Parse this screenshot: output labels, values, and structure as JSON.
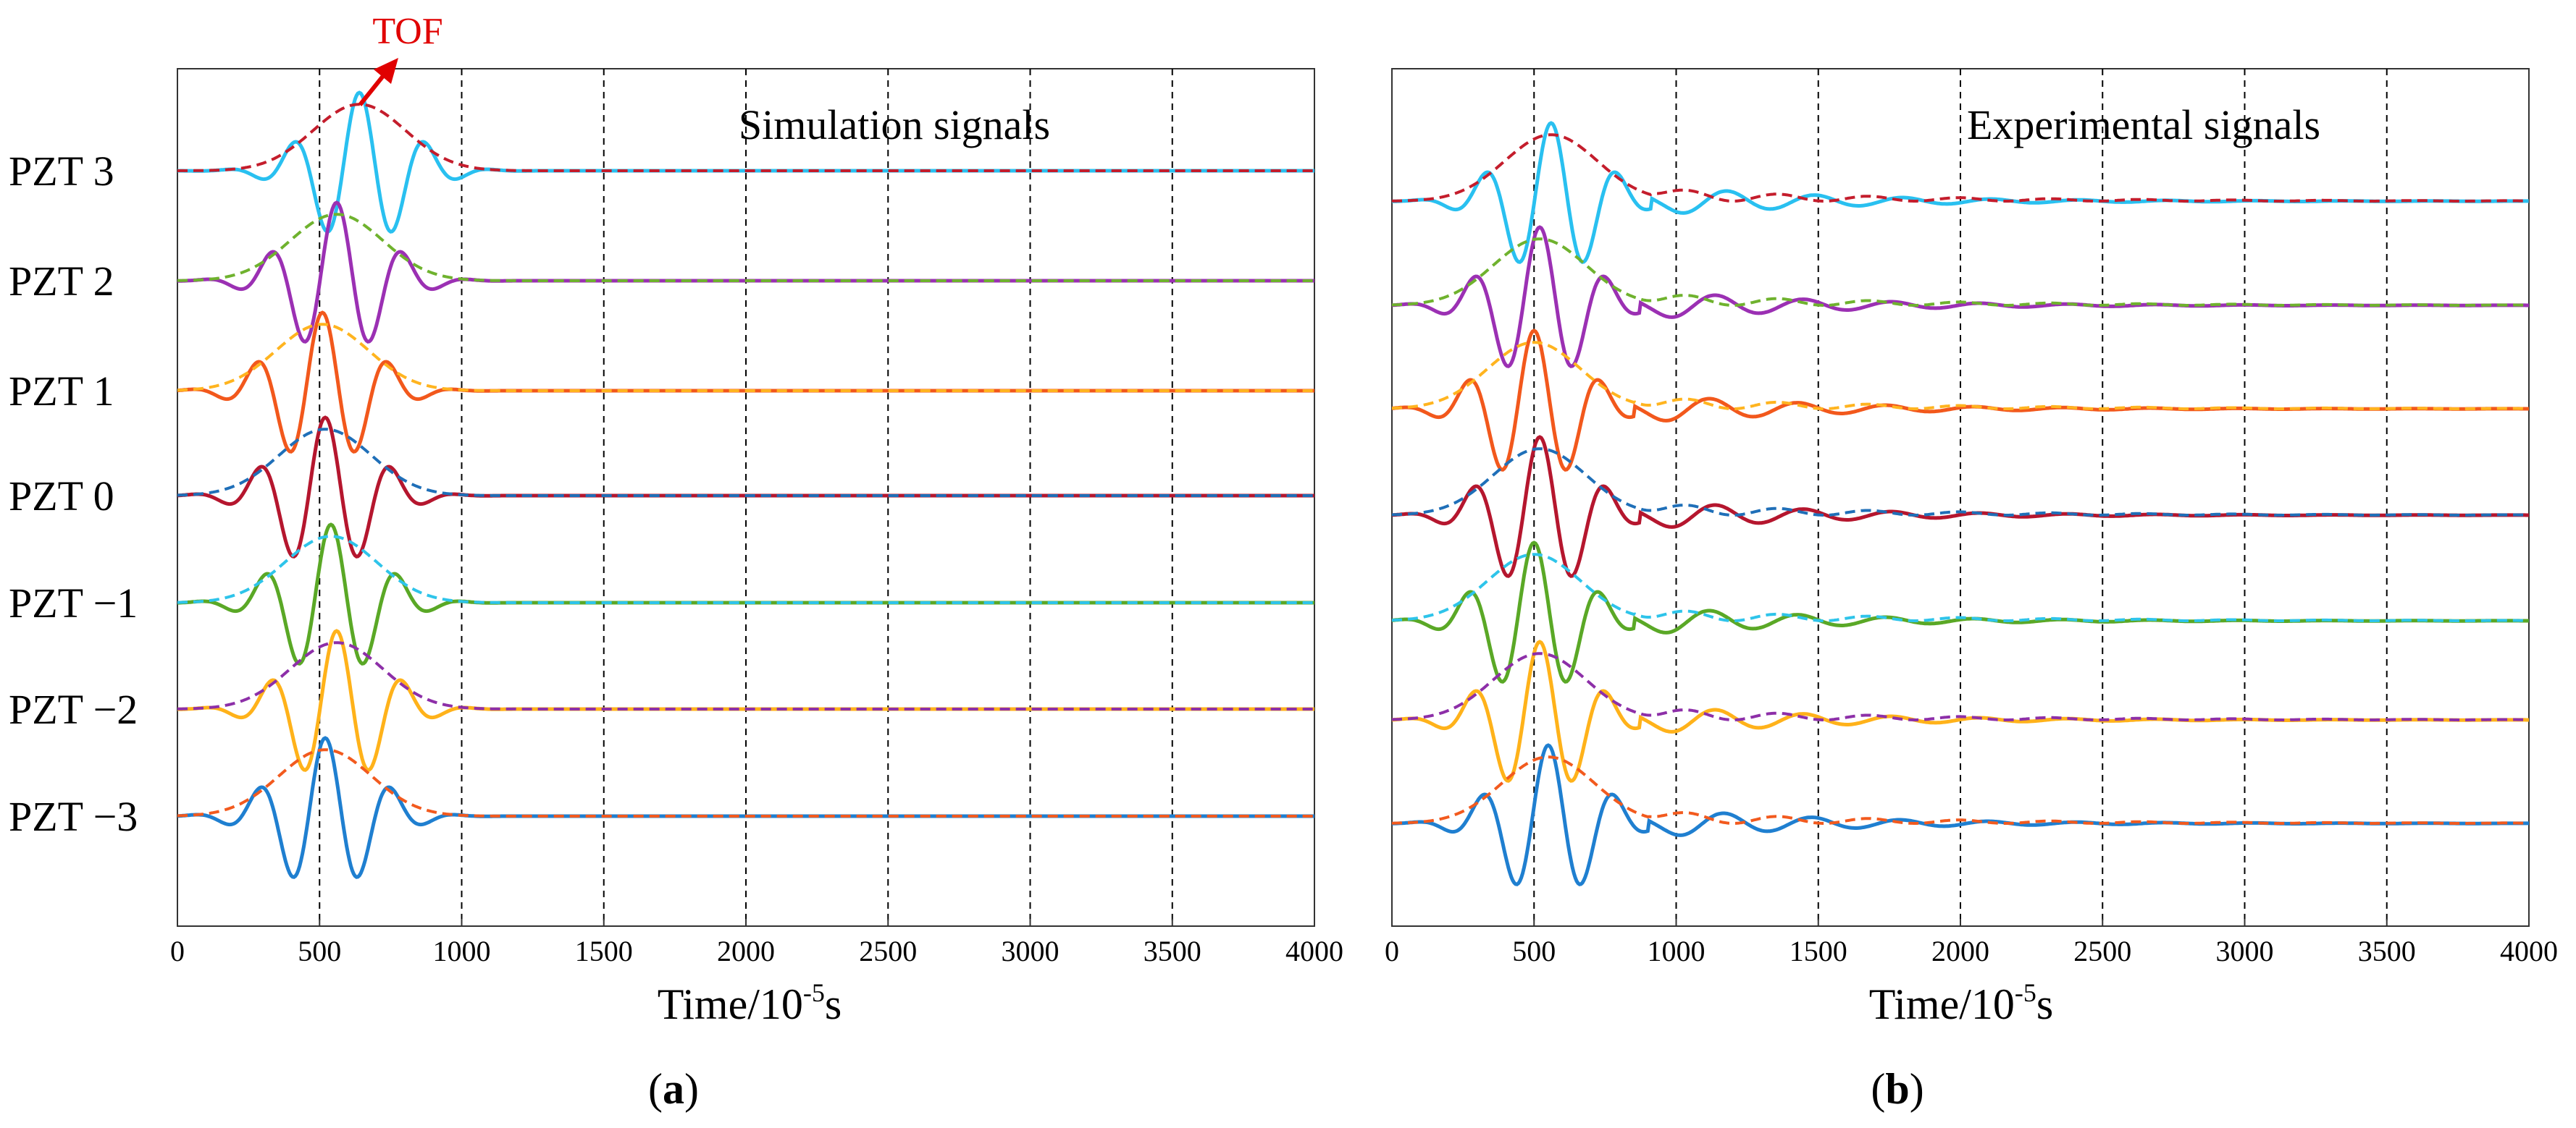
{
  "figure_labels": {
    "a": "a",
    "b": "b"
  },
  "chart_data": [
    {
      "type": "line",
      "panel": "a",
      "title": "Simulation signals",
      "xlabel_prefix": "Time/10",
      "xlabel_exp": "-5",
      "xlabel_suffix": "s",
      "xlim": [
        0,
        4000
      ],
      "xticks": [
        0,
        500,
        1000,
        1500,
        2000,
        2500,
        3000,
        3500,
        4000
      ],
      "grid": "vertical dashed lines at x = 500 to 3500",
      "annotation": "TOF",
      "row_labels": [
        "PZT 3",
        "PZT 2",
        "PZT 1",
        "PZT 0",
        "PZT −1",
        "PZT −2",
        "PZT −3"
      ],
      "signal_colors": [
        "#29c0f0",
        "#9b30b3",
        "#f2581c",
        "#b5162e",
        "#5aa826",
        "#ffb21a",
        "#1f7fd0"
      ],
      "envelope_colors": [
        "#c41d2c",
        "#6fb22e",
        "#ffb41f",
        "#1f6fb8",
        "#2ec4ea",
        "#8d2fa8",
        "#f25a1e"
      ],
      "wave_center": [
        640,
        560,
        510,
        520,
        540,
        560,
        520
      ],
      "wave_amplitude_fraction": 1.0
    },
    {
      "type": "line",
      "panel": "b",
      "title": "Experimental signals",
      "xlabel_prefix": "Time/10",
      "xlabel_exp": "-5",
      "xlabel_suffix": "s",
      "xlim": [
        0,
        4000
      ],
      "xticks": [
        0,
        500,
        1000,
        1500,
        2000,
        2500,
        3000,
        3500,
        4000
      ],
      "grid": "vertical dashed lines at x = 500 to 3500",
      "signal_colors": [
        "#29c0f0",
        "#9b30b3",
        "#f2581c",
        "#b5162e",
        "#5aa826",
        "#ffb21a",
        "#1f7fd0"
      ],
      "envelope_colors": [
        "#c41d2c",
        "#6fb22e",
        "#ffb41f",
        "#1f6fb8",
        "#2ec4ea",
        "#8d2fa8",
        "#f25a1e"
      ],
      "wave_center": [
        560,
        520,
        500,
        520,
        500,
        520,
        550
      ],
      "tail_ringing": true
    }
  ]
}
